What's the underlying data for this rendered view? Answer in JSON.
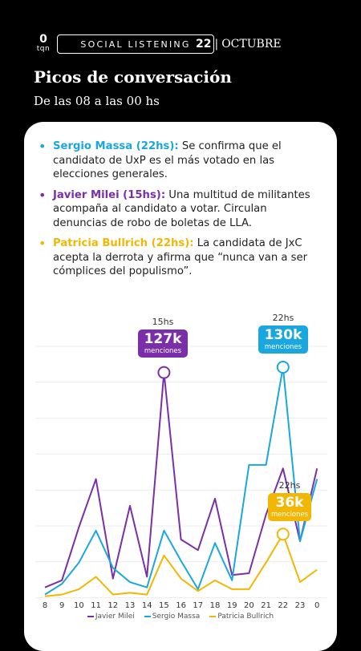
{
  "header": {
    "logo_mark": "0",
    "logo_text": "tqn",
    "section": "SOCIAL LISTENING",
    "date_day": "22",
    "date_separator": "|",
    "date_month": "OCTUBRE"
  },
  "title": "Picos de conversación",
  "subtitle": "De las 08 a las 00 hs",
  "bullets": [
    {
      "name": "Sergio Massa (22hs):",
      "text": " Se confirma que el candidato de UxP es el más votado en las elecciones generales.",
      "color": "#1aa7df"
    },
    {
      "name": "Javier Milei (15hs):",
      "text": " Una multitud de militantes acompaña al candidato a votar. Circulan denuncias de robo de boletas de LLA.",
      "color": "#7a2fa8"
    },
    {
      "name": "Patricia Bullrich (22hs):",
      "text": " La candidata de JxC acepta la derrota y afirma que “nunca van a ser cómplices del populismo”.",
      "color": "#f2b705"
    }
  ],
  "peaks": [
    {
      "time": "15hs",
      "value": "127k",
      "sub": "menciones",
      "color": "#7a2fa8"
    },
    {
      "time": "22hs",
      "value": "130k",
      "sub": "menciones",
      "color": "#1aa7df"
    },
    {
      "time": "22hs",
      "value": "36k",
      "sub": "menciones",
      "color": "#f2b705"
    }
  ],
  "chart_data": {
    "type": "line",
    "x": [
      "8",
      "9",
      "10",
      "11",
      "12",
      "13",
      "14",
      "15",
      "16",
      "17",
      "18",
      "19",
      "20",
      "21",
      "22",
      "23",
      "0"
    ],
    "series": [
      {
        "name": "Javier Milei",
        "color": "#7a2fa8",
        "values": [
          6,
          10,
          40,
          67,
          11,
          52,
          12,
          127,
          33,
          27,
          56,
          13,
          14,
          47,
          73,
          32,
          73
        ]
      },
      {
        "name": "Sergio Massa",
        "color": "#1aa7df",
        "values": [
          2,
          8,
          20,
          38,
          17,
          9,
          6,
          38,
          21,
          5,
          31,
          10,
          75,
          75,
          130,
          32,
          67
        ]
      },
      {
        "name": "Patricia Bullrich",
        "color": "#f2b705",
        "values": [
          1,
          2,
          5,
          12,
          2,
          3,
          2,
          24,
          11,
          4,
          10,
          5,
          5,
          20,
          36,
          9,
          16
        ]
      }
    ],
    "ylim": [
      0,
      130
    ],
    "grid": true,
    "legend": "bottom"
  }
}
